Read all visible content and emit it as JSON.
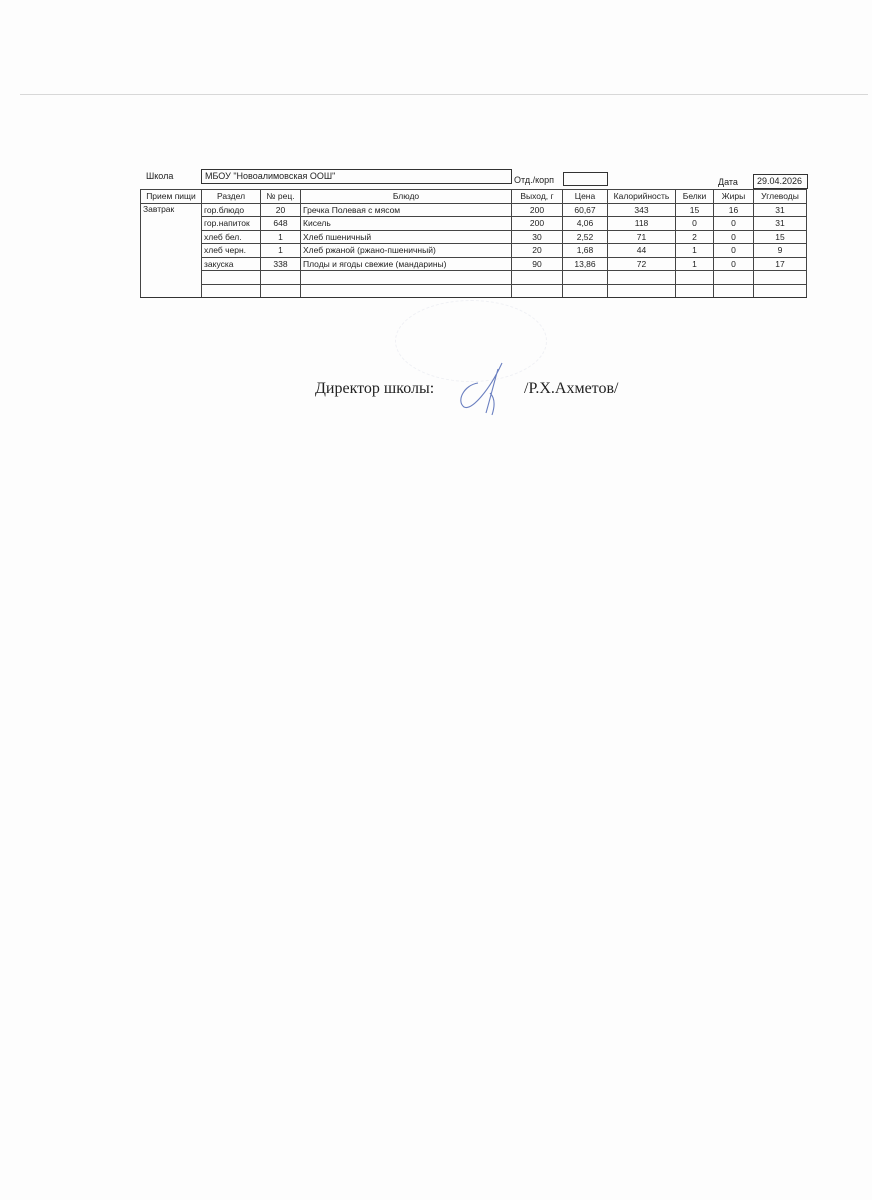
{
  "header": {
    "school_label": "Школа",
    "school_value": "МБОУ \"Новоалимовская ООШ\"",
    "branch_label": "Отд./корп",
    "branch_value": "",
    "date_label": "Дата",
    "date_value": "29.04.2026"
  },
  "table": {
    "columns": [
      "Прием пищи",
      "Раздел",
      "№ рец.",
      "Блюдо",
      "Выход, г",
      "Цена",
      "Калорийность",
      "Белки",
      "Жиры",
      "Углеводы"
    ],
    "meal": "Завтрак",
    "rows": [
      [
        "гор.блюдо",
        "20",
        "Гречка Полевая с мясом",
        "200",
        "60,67",
        "343",
        "15",
        "16",
        "31"
      ],
      [
        "гор.напиток",
        "648",
        "Кисель",
        "200",
        "4,06",
        "118",
        "0",
        "0",
        "31"
      ],
      [
        "хлеб бел.",
        "1",
        "Хлеб пшеничный",
        "30",
        "2,52",
        "71",
        "2",
        "0",
        "15"
      ],
      [
        "хлеб черн.",
        "1",
        "Хлеб ржаной (ржано-пшеничный)",
        "20",
        "1,68",
        "44",
        "1",
        "0",
        "9"
      ],
      [
        "закуска",
        "338",
        "Плоды и ягоды свежие (мандарины)",
        "90",
        "13,86",
        "72",
        "1",
        "0",
        "17"
      ]
    ]
  },
  "footer": {
    "director_label": "Директор школы:",
    "director_name": "/Р.Х.Ахметов/",
    "signature_color": "#6a7fc0"
  }
}
